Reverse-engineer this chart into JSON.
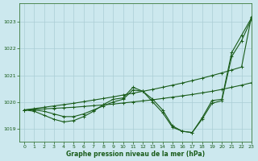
{
  "title": "Graphe pression niveau de la mer (hPa)",
  "bg_color": "#cce8ee",
  "grid_color": "#aacdd5",
  "line_color": "#1a5c1a",
  "xlim": [
    -0.5,
    23
  ],
  "ylim": [
    1018.5,
    1023.7
  ],
  "xticks": [
    0,
    1,
    2,
    3,
    4,
    5,
    6,
    7,
    8,
    9,
    10,
    11,
    12,
    13,
    14,
    15,
    16,
    17,
    18,
    19,
    20,
    21,
    22,
    23
  ],
  "yticks": [
    1019,
    1020,
    1021,
    1022,
    1023
  ],
  "series": [
    [
      1019.7,
      1019.7,
      1019.65,
      1019.55,
      1019.45,
      1019.45,
      1019.55,
      1019.7,
      1019.85,
      1020.0,
      1020.1,
      1020.45,
      1020.4,
      1020.1,
      1019.7,
      1019.1,
      1018.9,
      1018.85,
      1019.4,
      1020.05,
      1020.1,
      1021.85,
      1022.5,
      1023.15
    ],
    [
      1019.7,
      1019.65,
      1019.5,
      1019.35,
      1019.25,
      1019.3,
      1019.45,
      1019.65,
      1019.9,
      1020.1,
      1020.15,
      1020.55,
      1020.4,
      1020.0,
      1019.6,
      1019.05,
      1018.9,
      1018.85,
      1019.35,
      1019.95,
      1020.05,
      1021.7,
      1022.3,
      1023.1
    ],
    [
      1019.7,
      1019.72,
      1019.74,
      1019.76,
      1019.78,
      1019.8,
      1019.83,
      1019.86,
      1019.89,
      1019.92,
      1019.96,
      1020.0,
      1020.04,
      1020.08,
      1020.13,
      1020.18,
      1020.23,
      1020.28,
      1020.34,
      1020.4,
      1020.47,
      1020.55,
      1020.63,
      1020.72
    ],
    [
      1019.7,
      1019.75,
      1019.8,
      1019.85,
      1019.9,
      1019.95,
      1020.01,
      1020.07,
      1020.13,
      1020.19,
      1020.26,
      1020.33,
      1020.4,
      1020.47,
      1020.55,
      1020.63,
      1020.71,
      1020.8,
      1020.89,
      1020.99,
      1021.09,
      1021.2,
      1021.31,
      1023.2
    ]
  ]
}
